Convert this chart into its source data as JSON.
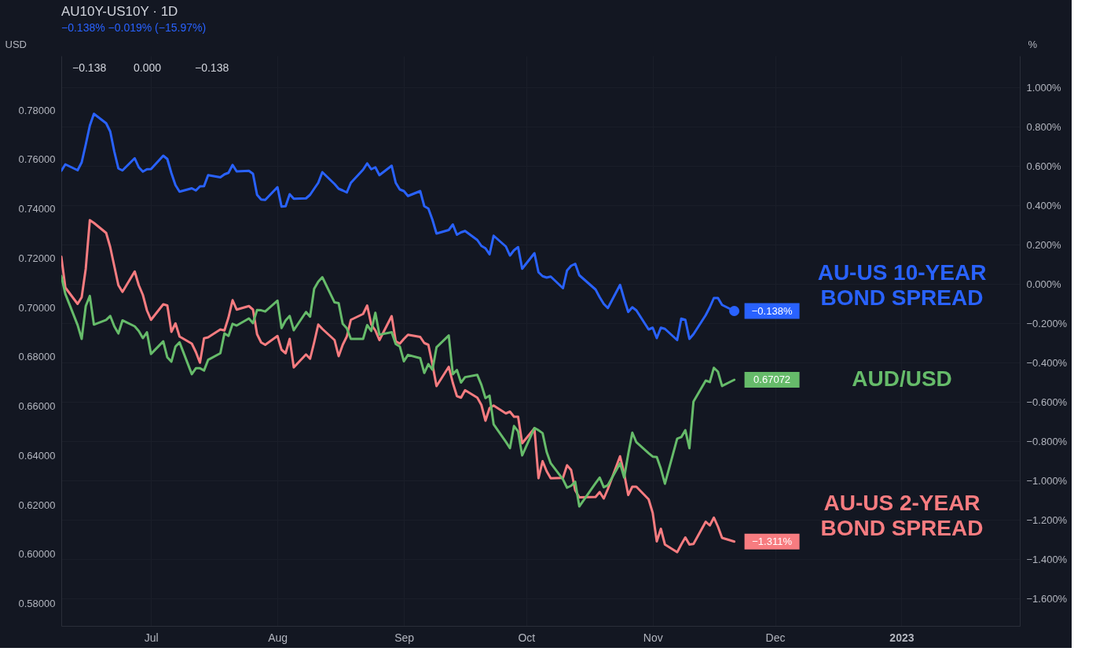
{
  "chart_data": {
    "type": "line",
    "title": "AU10Y-US10Y · 1D",
    "subtitle": "−0.138%  −0.019% (−15.97%)",
    "ylabel": "USD",
    "y2label": "%",
    "annotations": [
      "−0.138",
      "0.000",
      "−0.138"
    ],
    "grid": true,
    "legend": "right",
    "xlim": [
      "2022-06-09",
      "2023-01-30"
    ],
    "xticks": [
      {
        "value": "2022-07-01",
        "label": "Jul"
      },
      {
        "value": "2022-08-01",
        "label": "Aug"
      },
      {
        "value": "2022-09-01",
        "label": "Sep"
      },
      {
        "value": "2022-10-01",
        "label": "Oct"
      },
      {
        "value": "2022-11-01",
        "label": "Nov"
      },
      {
        "value": "2022-12-01",
        "label": "Dec"
      },
      {
        "value": "2023-01-01",
        "label": "2023"
      }
    ],
    "ylim": [
      0.571,
      0.802
    ],
    "yticks": [
      {
        "value": 0.58,
        "label": "0.58000"
      },
      {
        "value": 0.6,
        "label": "0.60000"
      },
      {
        "value": 0.62,
        "label": "0.62000"
      },
      {
        "value": 0.64,
        "label": "0.64000"
      },
      {
        "value": 0.66,
        "label": "0.66000"
      },
      {
        "value": 0.68,
        "label": "0.68000"
      },
      {
        "value": 0.7,
        "label": "0.70000"
      },
      {
        "value": 0.72,
        "label": "0.72000"
      },
      {
        "value": 0.74,
        "label": "0.74000"
      },
      {
        "value": 0.76,
        "label": "0.76000"
      },
      {
        "value": 0.78,
        "label": "0.78000"
      }
    ],
    "y2lim": [
      -1.74,
      1.16
    ],
    "y2ticks": [
      {
        "value": 1.0,
        "label": "1.000%"
      },
      {
        "value": 0.8,
        "label": "0.800%"
      },
      {
        "value": 0.6,
        "label": "0.600%"
      },
      {
        "value": 0.4,
        "label": "0.400%"
      },
      {
        "value": 0.2,
        "label": "0.200%"
      },
      {
        "value": 0.0,
        "label": "0.000%"
      },
      {
        "value": -0.2,
        "label": "−0.200%"
      },
      {
        "value": -0.4,
        "label": "−0.400%"
      },
      {
        "value": -0.6,
        "label": "−0.600%"
      },
      {
        "value": -0.8,
        "label": "−0.800%"
      },
      {
        "value": -1.0,
        "label": "−1.000%"
      },
      {
        "value": -1.2,
        "label": "−1.200%"
      },
      {
        "value": -1.4,
        "label": "−1.400%"
      },
      {
        "value": -1.6,
        "label": "−1.600%"
      }
    ],
    "x": [
      "2022-06-09",
      "2022-06-10",
      "2022-06-13",
      "2022-06-14",
      "2022-06-15",
      "2022-06-16",
      "2022-06-17",
      "2022-06-20",
      "2022-06-21",
      "2022-06-22",
      "2022-06-23",
      "2022-06-24",
      "2022-06-27",
      "2022-06-28",
      "2022-06-29",
      "2022-06-30",
      "2022-07-01",
      "2022-07-04",
      "2022-07-05",
      "2022-07-06",
      "2022-07-07",
      "2022-07-08",
      "2022-07-11",
      "2022-07-12",
      "2022-07-13",
      "2022-07-14",
      "2022-07-15",
      "2022-07-18",
      "2022-07-19",
      "2022-07-20",
      "2022-07-21",
      "2022-07-22",
      "2022-07-25",
      "2022-07-26",
      "2022-07-27",
      "2022-07-28",
      "2022-07-29",
      "2022-08-01",
      "2022-08-02",
      "2022-08-03",
      "2022-08-04",
      "2022-08-05",
      "2022-08-08",
      "2022-08-09",
      "2022-08-10",
      "2022-08-11",
      "2022-08-12",
      "2022-08-15",
      "2022-08-16",
      "2022-08-17",
      "2022-08-18",
      "2022-08-19",
      "2022-08-22",
      "2022-08-23",
      "2022-08-24",
      "2022-08-25",
      "2022-08-26",
      "2022-08-29",
      "2022-08-30",
      "2022-08-31",
      "2022-09-01",
      "2022-09-02",
      "2022-09-05",
      "2022-09-06",
      "2022-09-07",
      "2022-09-08",
      "2022-09-09",
      "2022-09-12",
      "2022-09-13",
      "2022-09-14",
      "2022-09-15",
      "2022-09-16",
      "2022-09-19",
      "2022-09-20",
      "2022-09-21",
      "2022-09-22",
      "2022-09-23",
      "2022-09-26",
      "2022-09-27",
      "2022-09-28",
      "2022-09-29",
      "2022-09-30",
      "2022-10-03",
      "2022-10-04",
      "2022-10-05",
      "2022-10-06",
      "2022-10-07",
      "2022-10-10",
      "2022-10-11",
      "2022-10-12",
      "2022-10-13",
      "2022-10-14",
      "2022-10-18",
      "2022-10-19",
      "2022-10-20",
      "2022-10-21",
      "2022-10-24",
      "2022-10-25",
      "2022-10-26",
      "2022-10-27",
      "2022-10-28",
      "2022-10-31",
      "2022-11-01",
      "2022-11-02",
      "2022-11-03",
      "2022-11-04",
      "2022-11-07",
      "2022-11-08",
      "2022-11-09",
      "2022-11-10",
      "2022-11-11",
      "2022-11-14",
      "2022-11-15",
      "2022-11-16",
      "2022-11-17",
      "2022-11-18",
      "2022-11-21"
    ],
    "series": [
      {
        "name": "AU-US 10-YEAR BOND SPREAD",
        "color": "#2962ff",
        "axis": "y2",
        "values": [
          0.575,
          0.608,
          0.578,
          0.618,
          0.709,
          0.805,
          0.865,
          0.817,
          0.775,
          0.673,
          0.587,
          0.577,
          0.639,
          0.593,
          0.571,
          0.583,
          0.584,
          0.652,
          0.635,
          0.563,
          0.502,
          0.469,
          0.486,
          0.475,
          0.496,
          0.497,
          0.553,
          0.542,
          0.557,
          0.565,
          0.605,
          0.572,
          0.575,
          0.56,
          0.453,
          0.429,
          0.427,
          0.492,
          0.393,
          0.395,
          0.456,
          0.433,
          0.435,
          0.453,
          0.484,
          0.514,
          0.568,
          0.508,
          0.484,
          0.475,
          0.465,
          0.514,
          0.581,
          0.613,
          0.583,
          0.593,
          0.553,
          0.601,
          0.514,
          0.48,
          0.472,
          0.447,
          0.472,
          0.395,
          0.383,
          0.326,
          0.256,
          0.274,
          0.302,
          0.25,
          0.262,
          0.269,
          0.223,
          0.193,
          0.181,
          0.15,
          0.245,
          0.19,
          0.144,
          0.171,
          0.187,
          0.077,
          0.156,
          0.059,
          0.039,
          0.032,
          0.037,
          -0.022,
          0.068,
          0.092,
          0.102,
          0.044,
          -0.029,
          -0.068,
          -0.102,
          -0.123,
          -0.005,
          -0.077,
          -0.143,
          -0.119,
          -0.135,
          -0.232,
          -0.223,
          -0.276,
          -0.223,
          -0.229,
          -0.286,
          -0.177,
          -0.183,
          -0.28,
          -0.256,
          -0.159,
          -0.119,
          -0.072,
          -0.072,
          -0.107,
          -0.138
        ],
        "value_labels": [
          null,
          null,
          null,
          null,
          null,
          null,
          null,
          null,
          null,
          null,
          null,
          null,
          null,
          null,
          null,
          null,
          null,
          null,
          null,
          null,
          null,
          null,
          null,
          null,
          null,
          null,
          null,
          null,
          null,
          null,
          null,
          null,
          null,
          null,
          null,
          null,
          null,
          null,
          null,
          null,
          null,
          null,
          null,
          null,
          null,
          null,
          null,
          null,
          null,
          null,
          null,
          null,
          null,
          null,
          null,
          null,
          null,
          null,
          null,
          null,
          null,
          null,
          null,
          null,
          null,
          null,
          null,
          null,
          null,
          null,
          null,
          null,
          null,
          null,
          null,
          null,
          null,
          null,
          null,
          null,
          null,
          null,
          null,
          null,
          null,
          null,
          null,
          null,
          null,
          null,
          null,
          null,
          null,
          null,
          null,
          null,
          null,
          null,
          null,
          null,
          null,
          null,
          null,
          null,
          null,
          null,
          null,
          null,
          null,
          null,
          null,
          null,
          null,
          null,
          null,
          null,
          "−0.138%"
        ]
      },
      {
        "name": "AUD/USD",
        "color": "#66bb6a",
        "axis": "y",
        "values": [
          0.7128,
          0.7055,
          0.6929,
          0.6873,
          0.7006,
          0.7047,
          0.6931,
          0.695,
          0.6966,
          0.6924,
          0.6895,
          0.6948,
          0.6924,
          0.6905,
          0.6876,
          0.69,
          0.6812,
          0.6863,
          0.6798,
          0.6781,
          0.6842,
          0.6859,
          0.673,
          0.6754,
          0.6754,
          0.6745,
          0.6788,
          0.6815,
          0.6895,
          0.6885,
          0.6934,
          0.6927,
          0.6956,
          0.6937,
          0.699,
          0.6989,
          0.6984,
          0.7028,
          0.6917,
          0.6948,
          0.6966,
          0.6908,
          0.6982,
          0.6963,
          0.7076,
          0.7105,
          0.7123,
          0.7021,
          0.7018,
          0.6934,
          0.6916,
          0.6873,
          0.6873,
          0.6929,
          0.6905,
          0.6979,
          0.689,
          0.69,
          0.6852,
          0.6842,
          0.6782,
          0.6808,
          0.6795,
          0.6735,
          0.6771,
          0.6748,
          0.6839,
          0.6887,
          0.673,
          0.6747,
          0.6696,
          0.6718,
          0.6727,
          0.6687,
          0.6633,
          0.6643,
          0.6527,
          0.6456,
          0.643,
          0.652,
          0.6498,
          0.6401,
          0.6512,
          0.6503,
          0.6491,
          0.6415,
          0.6369,
          0.6304,
          0.627,
          0.6278,
          0.6294,
          0.6194,
          0.6289,
          0.6311,
          0.6272,
          0.628,
          0.6369,
          0.6311,
          0.6406,
          0.6493,
          0.6454,
          0.641,
          0.6396,
          0.6394,
          0.6347,
          0.6286,
          0.6469,
          0.6475,
          0.6503,
          0.643,
          0.6619,
          0.6704,
          0.6698,
          0.6756,
          0.674,
          0.6682,
          0.67072
        ],
        "value_labels": [
          null,
          null,
          null,
          null,
          null,
          null,
          null,
          null,
          null,
          null,
          null,
          null,
          null,
          null,
          null,
          null,
          null,
          null,
          null,
          null,
          null,
          null,
          null,
          null,
          null,
          null,
          null,
          null,
          null,
          null,
          null,
          null,
          null,
          null,
          null,
          null,
          null,
          null,
          null,
          null,
          null,
          null,
          null,
          null,
          null,
          null,
          null,
          null,
          null,
          null,
          null,
          null,
          null,
          null,
          null,
          null,
          null,
          null,
          null,
          null,
          null,
          null,
          null,
          null,
          null,
          null,
          null,
          null,
          null,
          null,
          null,
          null,
          null,
          null,
          null,
          null,
          null,
          null,
          null,
          null,
          null,
          null,
          null,
          null,
          null,
          null,
          null,
          null,
          null,
          null,
          null,
          null,
          null,
          null,
          null,
          null,
          null,
          null,
          null,
          null,
          null,
          null,
          null,
          null,
          null,
          null,
          null,
          null,
          null,
          null,
          null,
          null,
          null,
          null,
          null,
          null,
          "0.67072"
        ]
      },
      {
        "name": "AU-US 2-YEAR BOND SPREAD",
        "color": "#f77c80",
        "axis": "y2",
        "values": [
          0.138,
          -0.019,
          -0.102,
          -0.068,
          0.077,
          0.324,
          0.31,
          0.259,
          0.187,
          0.09,
          -0.007,
          -0.041,
          0.063,
          -0.007,
          -0.056,
          -0.135,
          -0.183,
          -0.104,
          -0.11,
          -0.244,
          -0.201,
          -0.268,
          -0.304,
          -0.347,
          -0.401,
          -0.277,
          -0.272,
          -0.232,
          -0.237,
          -0.171,
          -0.083,
          -0.131,
          -0.113,
          -0.131,
          -0.256,
          -0.298,
          -0.31,
          -0.265,
          -0.335,
          -0.353,
          -0.28,
          -0.425,
          -0.359,
          -0.381,
          -0.298,
          -0.207,
          -0.229,
          -0.286,
          -0.368,
          -0.31,
          -0.268,
          -0.183,
          -0.153,
          -0.11,
          -0.207,
          -0.237,
          -0.286,
          -0.164,
          -0.292,
          -0.304,
          -0.28,
          -0.259,
          -0.27,
          -0.301,
          -0.31,
          -0.41,
          -0.52,
          -0.422,
          -0.504,
          -0.571,
          -0.579,
          -0.541,
          -0.579,
          -0.616,
          -0.696,
          -0.632,
          -0.619,
          -0.659,
          -0.65,
          -0.676,
          -0.676,
          -0.811,
          -0.735,
          -0.989,
          -0.902,
          -0.953,
          -0.989,
          -0.987,
          -0.923,
          -0.947,
          -1.05,
          -1.086,
          -1.084,
          -1.059,
          -1.092,
          -1.044,
          -0.877,
          -0.965,
          -1.074,
          -1.032,
          -1.032,
          -1.096,
          -1.165,
          -1.31,
          -1.246,
          -1.326,
          -1.365,
          -1.326,
          -1.29,
          -1.326,
          -1.323,
          -1.21,
          -1.229,
          -1.189,
          -1.235,
          -1.292,
          -1.311
        ],
        "value_labels": [
          null,
          null,
          null,
          null,
          null,
          null,
          null,
          null,
          null,
          null,
          null,
          null,
          null,
          null,
          null,
          null,
          null,
          null,
          null,
          null,
          null,
          null,
          null,
          null,
          null,
          null,
          null,
          null,
          null,
          null,
          null,
          null,
          null,
          null,
          null,
          null,
          null,
          null,
          null,
          null,
          null,
          null,
          null,
          null,
          null,
          null,
          null,
          null,
          null,
          null,
          null,
          null,
          null,
          null,
          null,
          null,
          null,
          null,
          null,
          null,
          null,
          null,
          null,
          null,
          null,
          null,
          null,
          null,
          null,
          null,
          null,
          null,
          null,
          null,
          null,
          null,
          null,
          null,
          null,
          null,
          null,
          null,
          null,
          null,
          null,
          null,
          null,
          null,
          null,
          null,
          null,
          null,
          null,
          null,
          null,
          null,
          null,
          null,
          null,
          null,
          null,
          null,
          null,
          null,
          null,
          null,
          null,
          null,
          null,
          null,
          null,
          null,
          null,
          null,
          null,
          null,
          "−1.311%"
        ]
      },
      {
        "type": "scatter",
        "marker": "circle",
        "color": "#2962ff",
        "axis": "y2",
        "x": [
          "2022-11-21"
        ],
        "values": [
          -0.138
        ]
      }
    ]
  }
}
